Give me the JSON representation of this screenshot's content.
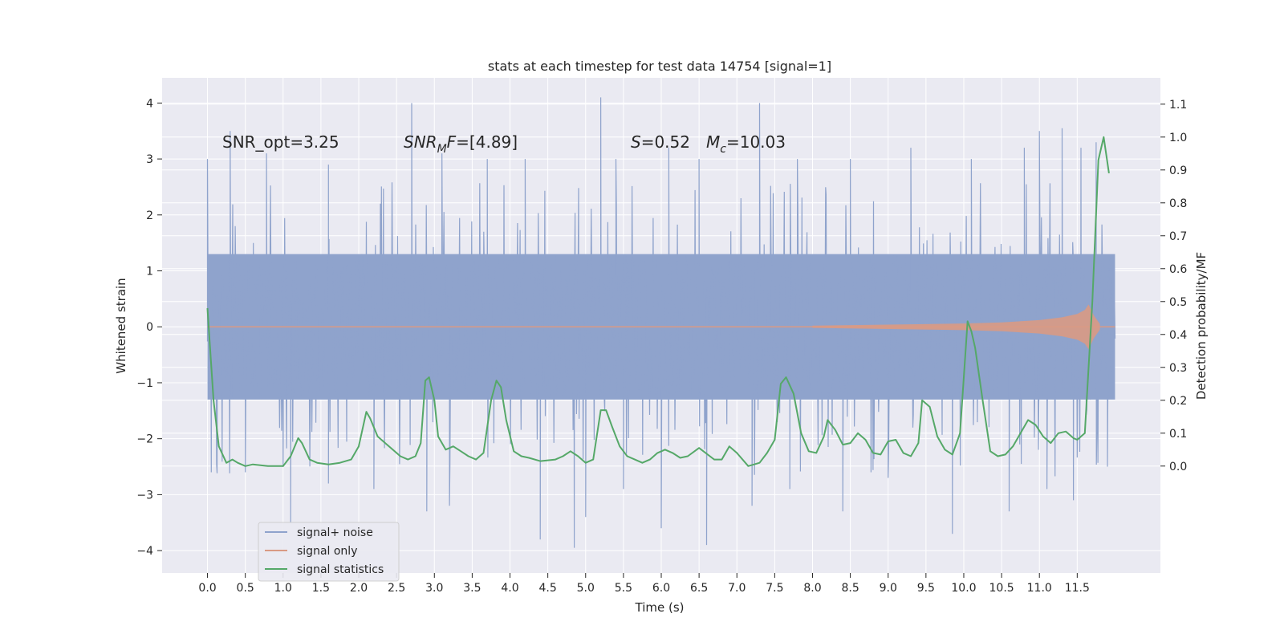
{
  "chart_data": {
    "type": "line",
    "title": "stats at each timestep for test data 14754 [signal=1]",
    "xlabel": "Time (s)",
    "ylabel": "Whitened strain",
    "y2label": "Detection probability/MF",
    "xlim": [
      -0.6,
      12.6
    ],
    "ylim": [
      -4.4,
      4.45
    ],
    "y2lim": [
      -0.325,
      1.18
    ],
    "xticks": [
      0.0,
      0.5,
      1.0,
      1.5,
      2.0,
      2.5,
      3.0,
      3.5,
      4.0,
      4.5,
      5.0,
      5.5,
      6.0,
      6.5,
      7.0,
      7.5,
      8.0,
      8.5,
      9.0,
      9.5,
      10.0,
      10.5,
      11.0,
      11.5
    ],
    "xtick_labels": [
      "0.0",
      "0.5",
      "1.0",
      "1.5",
      "2.0",
      "2.5",
      "3.0",
      "3.5",
      "4.0",
      "4.5",
      "5.0",
      "5.5",
      "6.0",
      "6.5",
      "7.0",
      "7.5",
      "8.0",
      "8.5",
      "9.0",
      "9.5",
      "10.0",
      "10.5",
      "11.0",
      "11.5"
    ],
    "yticks": [
      4,
      3,
      2,
      1,
      0,
      -1,
      -2,
      -3,
      -4
    ],
    "ytick_labels": [
      "4",
      "3",
      "2",
      "1",
      "0",
      "−1",
      "−2",
      "−3",
      "−4"
    ],
    "y2ticks": [
      1.1,
      1.0,
      0.9,
      0.8,
      0.7,
      0.6,
      0.5,
      0.4,
      0.3,
      0.2,
      0.1,
      0.0
    ],
    "y2tick_labels": [
      "1.1",
      "1.0",
      "0.9",
      "0.8",
      "0.7",
      "0.6",
      "0.5",
      "0.4",
      "0.3",
      "0.2",
      "0.1",
      "0.0"
    ],
    "annotations": {
      "snr_opt": "SNR_opt=3.25",
      "snr_mf_value": "=[4.89]",
      "s_value": "=0.52",
      "mc_value": "=10.03"
    },
    "legend": {
      "placement": "lower-left",
      "entries": [
        "signal+ noise",
        "signal only",
        "signal statistics"
      ]
    },
    "colors": {
      "noise": "#8fa3cc",
      "signal": "#d99a84",
      "stats": "#55a868",
      "plot_bg": "#eaeaf2",
      "grid": "#ffffff"
    },
    "noise_series": {
      "name": "signal+ noise",
      "t_start": 0.0,
      "t_end": 12.0,
      "typical_range": [
        -1.3,
        1.3
      ],
      "upper_peaks": [
        [
          0.0,
          3.0
        ],
        [
          0.3,
          3.5
        ],
        [
          0.78,
          3.1
        ],
        [
          1.6,
          2.9
        ],
        [
          2.7,
          4.0
        ],
        [
          3.1,
          3.1
        ],
        [
          3.7,
          3.0
        ],
        [
          4.2,
          3.0
        ],
        [
          5.2,
          4.1
        ],
        [
          5.4,
          3.0
        ],
        [
          6.1,
          3.2
        ],
        [
          6.5,
          3.0
        ],
        [
          7.3,
          4.0
        ],
        [
          7.8,
          3.0
        ],
        [
          8.5,
          3.0
        ],
        [
          9.3,
          3.2
        ],
        [
          10.1,
          3.0
        ],
        [
          10.8,
          3.2
        ],
        [
          11.0,
          3.5
        ],
        [
          11.3,
          3.55
        ],
        [
          11.55,
          3.2
        ],
        [
          11.75,
          3.3
        ]
      ],
      "lower_peaks": [
        [
          0.05,
          -2.6
        ],
        [
          0.5,
          -2.6
        ],
        [
          1.1,
          -3.5
        ],
        [
          1.6,
          -2.8
        ],
        [
          2.2,
          -2.9
        ],
        [
          2.9,
          -3.3
        ],
        [
          3.2,
          -3.2
        ],
        [
          4.4,
          -3.8
        ],
        [
          4.85,
          -3.95
        ],
        [
          5.0,
          -3.4
        ],
        [
          5.5,
          -2.9
        ],
        [
          6.0,
          -3.6
        ],
        [
          6.6,
          -3.9
        ],
        [
          7.2,
          -3.2
        ],
        [
          7.7,
          -2.9
        ],
        [
          8.4,
          -3.3
        ],
        [
          9.0,
          -2.7
        ],
        [
          9.85,
          -3.7
        ],
        [
          10.6,
          -3.3
        ],
        [
          11.1,
          -2.9
        ],
        [
          11.45,
          -3.1
        ],
        [
          11.9,
          -2.5
        ]
      ]
    },
    "signal_series": {
      "name": "signal only",
      "envelope": [
        [
          8.0,
          0.02
        ],
        [
          9.0,
          0.04
        ],
        [
          10.0,
          0.06
        ],
        [
          10.5,
          0.08
        ],
        [
          11.0,
          0.12
        ],
        [
          11.3,
          0.17
        ],
        [
          11.5,
          0.23
        ],
        [
          11.6,
          0.3
        ],
        [
          11.65,
          0.4
        ],
        [
          11.72,
          0.2
        ],
        [
          11.8,
          0.05
        ]
      ]
    },
    "stats_series": {
      "name": "signal statistics",
      "x": [
        0.0,
        0.08,
        0.15,
        0.25,
        0.33,
        0.4,
        0.5,
        0.6,
        0.8,
        1.0,
        1.1,
        1.2,
        1.25,
        1.35,
        1.45,
        1.6,
        1.75,
        1.9,
        2.0,
        2.1,
        2.15,
        2.25,
        2.35,
        2.45,
        2.55,
        2.65,
        2.75,
        2.82,
        2.88,
        2.93,
        3.0,
        3.05,
        3.15,
        3.25,
        3.35,
        3.45,
        3.55,
        3.65,
        3.75,
        3.82,
        3.88,
        3.95,
        4.05,
        4.15,
        4.25,
        4.4,
        4.6,
        4.7,
        4.8,
        4.9,
        5.0,
        5.1,
        5.2,
        5.27,
        5.35,
        5.45,
        5.55,
        5.65,
        5.75,
        5.85,
        5.95,
        6.05,
        6.15,
        6.25,
        6.35,
        6.5,
        6.7,
        6.8,
        6.9,
        7.0,
        7.15,
        7.3,
        7.4,
        7.5,
        7.58,
        7.65,
        7.75,
        7.85,
        7.95,
        8.05,
        8.15,
        8.2,
        8.3,
        8.4,
        8.5,
        8.6,
        8.7,
        8.8,
        8.9,
        9.0,
        9.1,
        9.2,
        9.3,
        9.4,
        9.45,
        9.55,
        9.65,
        9.75,
        9.85,
        9.95,
        10.05,
        10.1,
        10.15,
        10.25,
        10.35,
        10.45,
        10.55,
        10.65,
        10.75,
        10.85,
        10.95,
        11.05,
        11.15,
        11.25,
        11.35,
        11.45,
        11.5,
        11.6,
        11.7,
        11.78,
        11.85,
        11.92
      ],
      "values": [
        0.48,
        0.2,
        0.06,
        0.01,
        0.02,
        0.01,
        0.0,
        0.005,
        0.0,
        0.0,
        0.03,
        0.085,
        0.07,
        0.02,
        0.01,
        0.005,
        0.01,
        0.02,
        0.06,
        0.165,
        0.145,
        0.09,
        0.07,
        0.05,
        0.03,
        0.02,
        0.03,
        0.07,
        0.26,
        0.27,
        0.2,
        0.09,
        0.05,
        0.06,
        0.045,
        0.03,
        0.02,
        0.04,
        0.2,
        0.26,
        0.24,
        0.14,
        0.045,
        0.03,
        0.025,
        0.015,
        0.02,
        0.03,
        0.045,
        0.03,
        0.01,
        0.02,
        0.17,
        0.17,
        0.12,
        0.06,
        0.03,
        0.02,
        0.01,
        0.02,
        0.04,
        0.05,
        0.04,
        0.025,
        0.03,
        0.055,
        0.02,
        0.02,
        0.06,
        0.04,
        0.0,
        0.01,
        0.04,
        0.08,
        0.25,
        0.27,
        0.22,
        0.1,
        0.045,
        0.04,
        0.09,
        0.14,
        0.11,
        0.065,
        0.07,
        0.1,
        0.08,
        0.04,
        0.035,
        0.075,
        0.08,
        0.04,
        0.03,
        0.07,
        0.2,
        0.18,
        0.09,
        0.05,
        0.035,
        0.1,
        0.44,
        0.41,
        0.36,
        0.2,
        0.045,
        0.03,
        0.035,
        0.06,
        0.1,
        0.14,
        0.125,
        0.09,
        0.07,
        0.1,
        0.105,
        0.085,
        0.08,
        0.1,
        0.5,
        0.93,
        1.0,
        0.89
      ]
    }
  }
}
